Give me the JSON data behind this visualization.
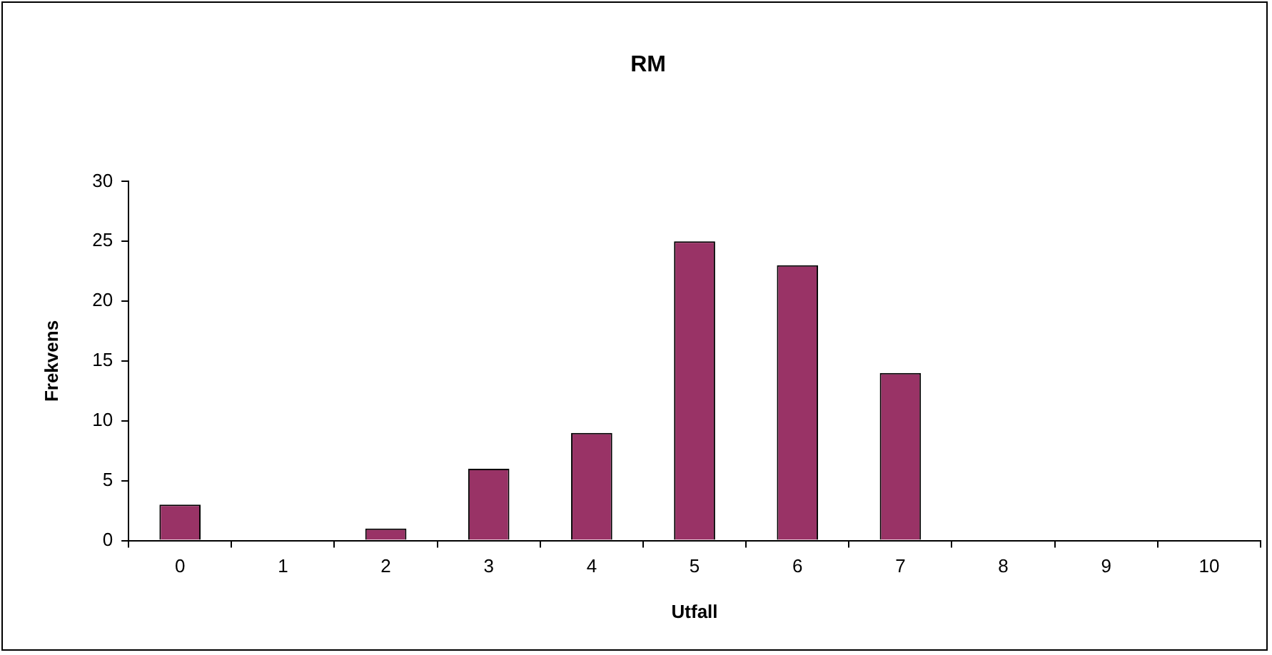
{
  "chart_data": {
    "type": "bar",
    "title": "RM",
    "xlabel": "Utfall",
    "ylabel": "Frekvens",
    "categories": [
      "0",
      "1",
      "2",
      "3",
      "4",
      "5",
      "6",
      "7",
      "8",
      "9",
      "10"
    ],
    "values": [
      3,
      0,
      1,
      6,
      9,
      25,
      23,
      14,
      0,
      0,
      0
    ],
    "color": "#993366",
    "ylim": [
      0,
      30
    ],
    "yticks": [
      0,
      5,
      10,
      15,
      20,
      25,
      30
    ],
    "grid": false,
    "legend": false
  }
}
